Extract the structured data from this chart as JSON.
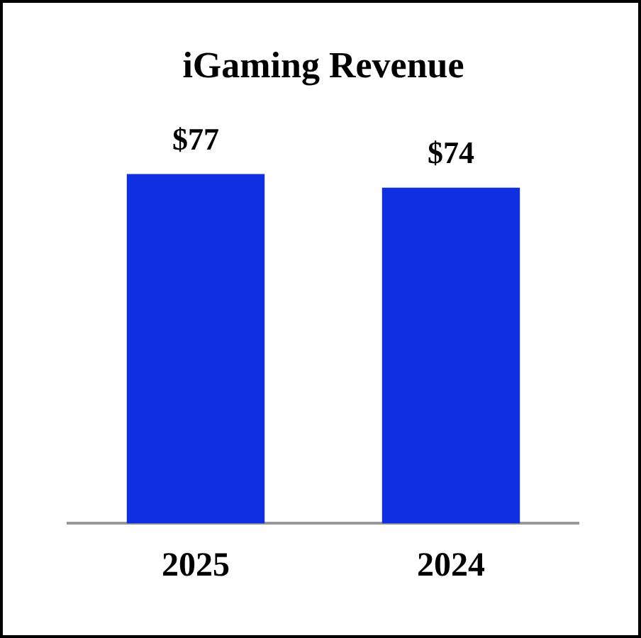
{
  "chart_data": {
    "type": "bar",
    "title": "iGaming Revenue",
    "categories": [
      "2025",
      "2024"
    ],
    "values": [
      77,
      74
    ],
    "value_labels": [
      "$77",
      "$74"
    ],
    "color": "#0f2fe0",
    "grid": false,
    "legend": false
  }
}
